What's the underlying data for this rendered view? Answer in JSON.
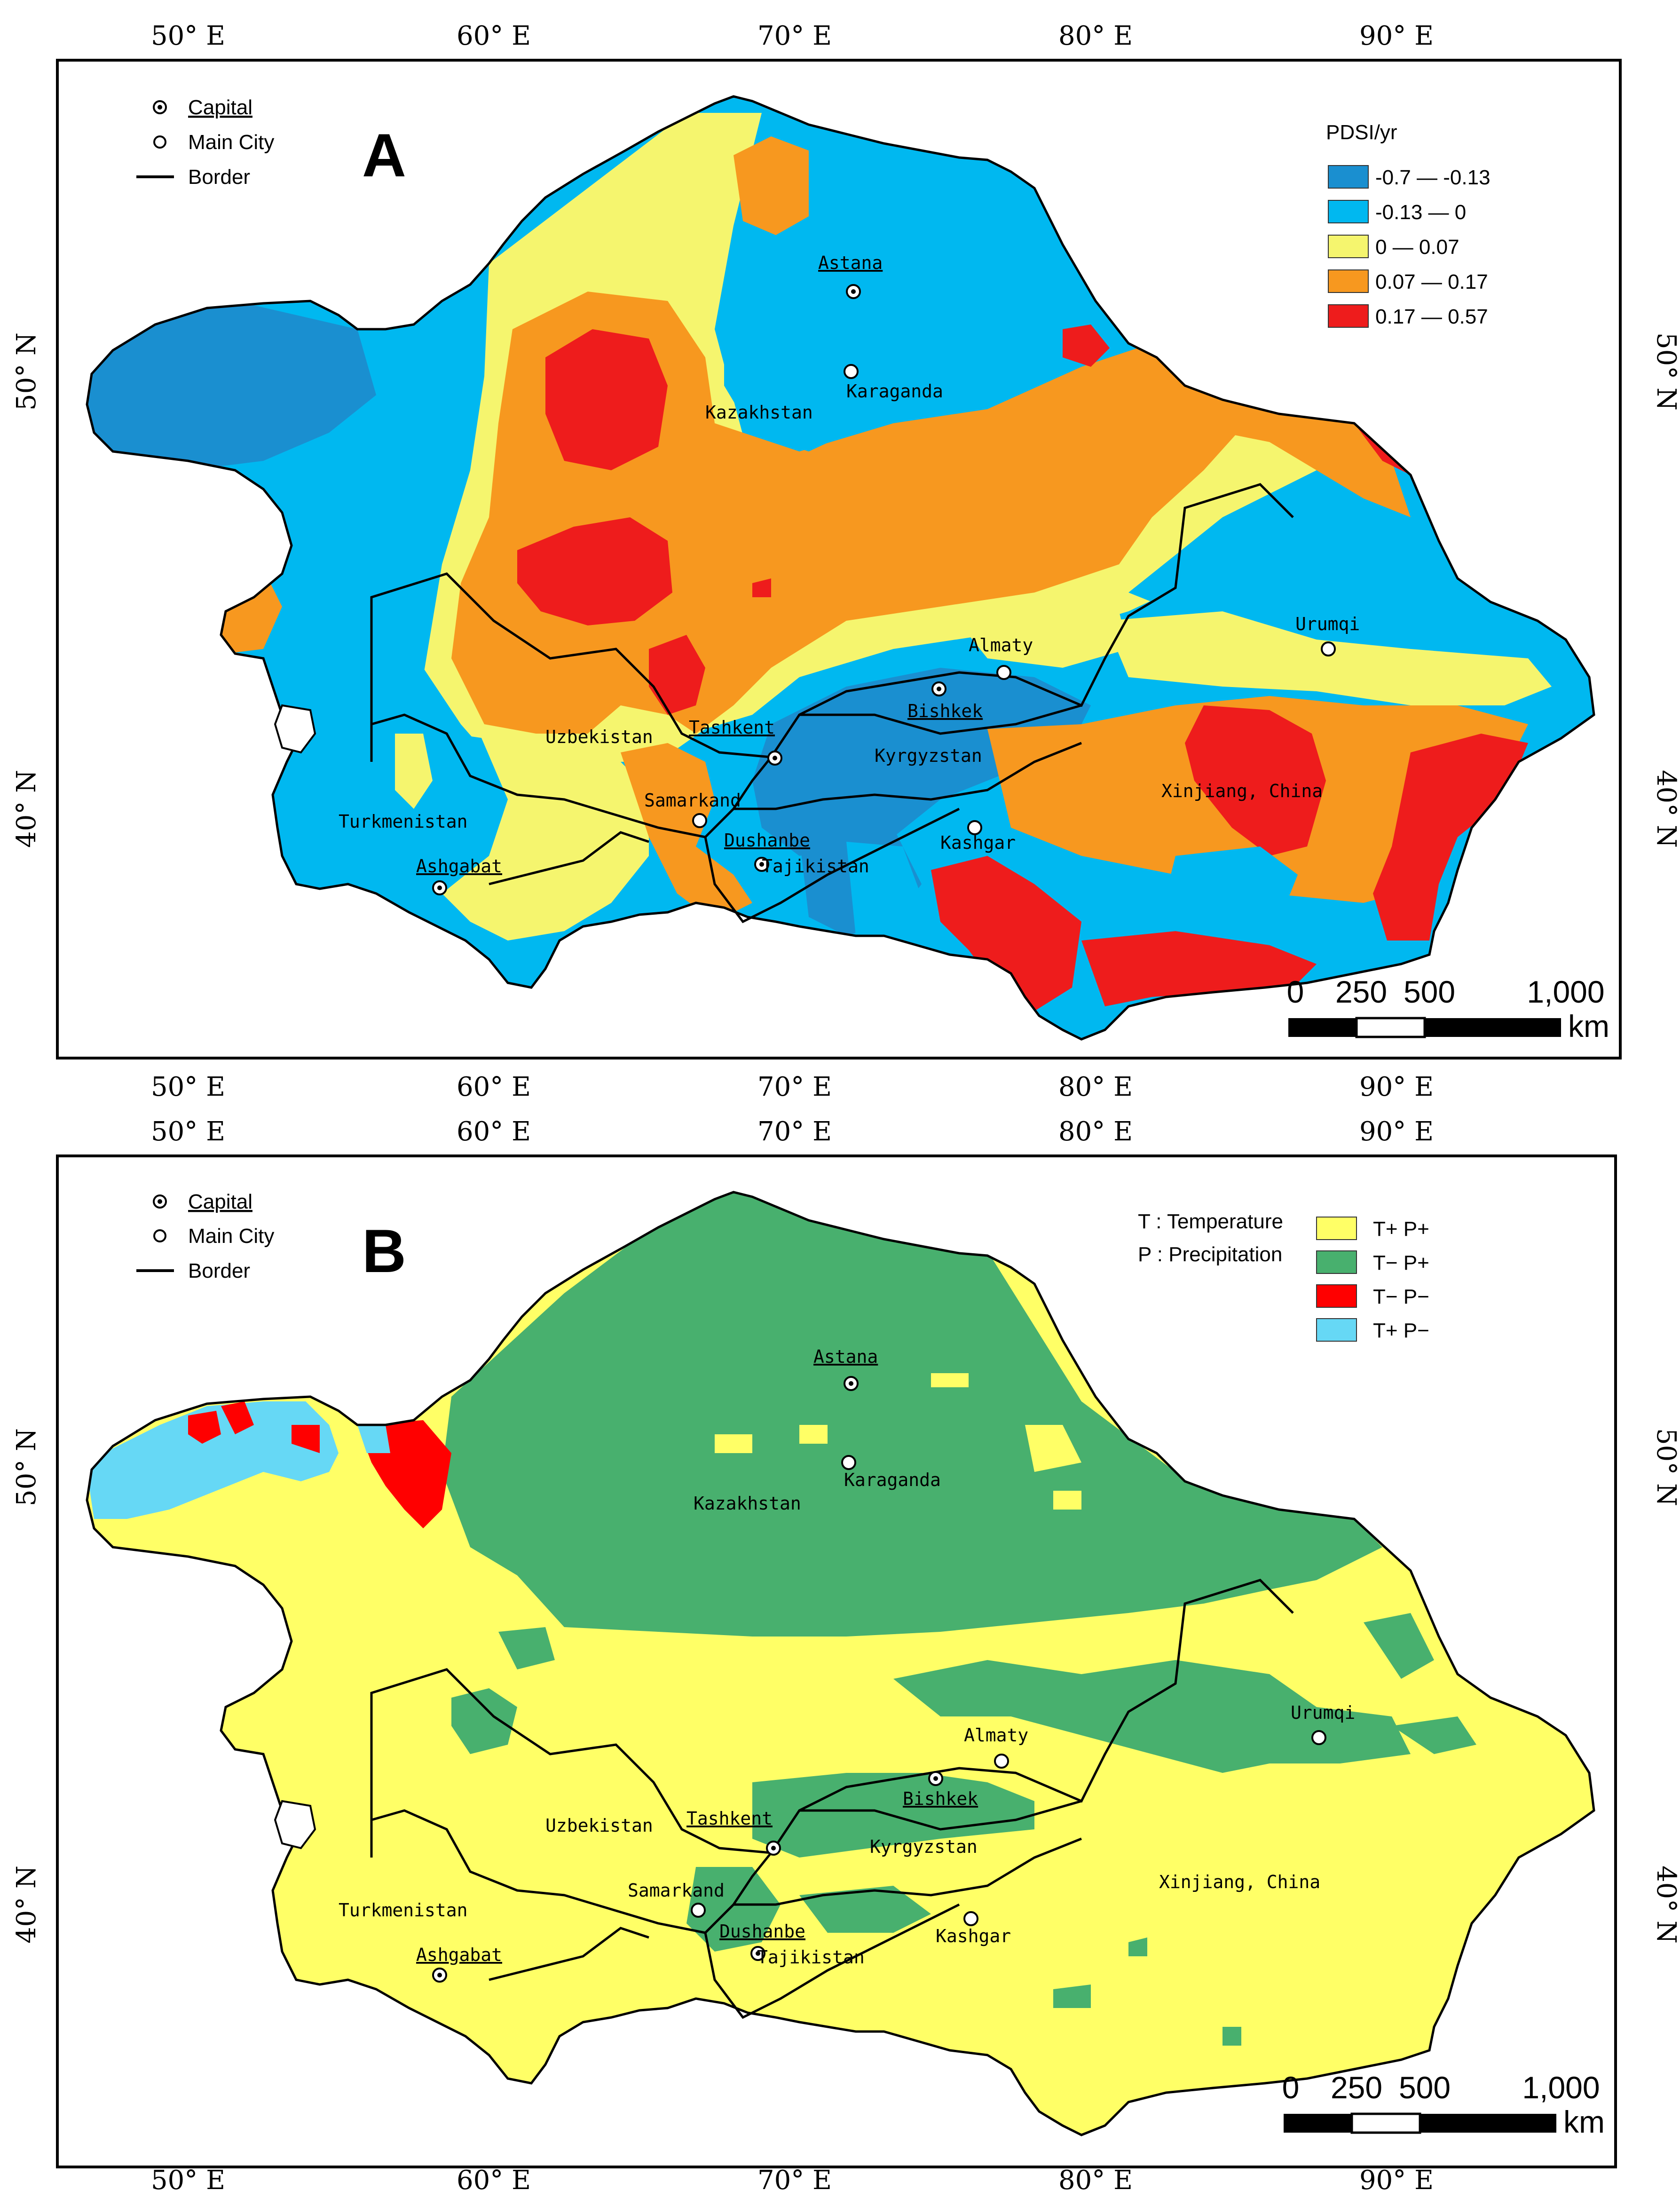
{
  "panel_a": {
    "label": "A",
    "lon_ticks": [
      "50° E",
      "60° E",
      "70° E",
      "80° E",
      "90° E"
    ],
    "lat_ticks": [
      "50° N",
      "40° N"
    ],
    "symbol_legend": {
      "capital": "Capital",
      "main_city": "Main City",
      "border": "Border"
    },
    "legend_title": "PDSI/yr",
    "classes": [
      {
        "label": "-0.7 — -0.13",
        "color": "#1a8fd0"
      },
      {
        "label": "-0.13 — 0",
        "color": "#00b8f0"
      },
      {
        "label": "0 — 0.07",
        "color": "#f5f56e"
      },
      {
        "label": "0.07 — 0.17",
        "color": "#f7981f"
      },
      {
        "label": "0.17 — 0.57",
        "color": "#ee1c1c"
      }
    ],
    "scale": {
      "zero": "0",
      "mid1": "250",
      "mid2": "500",
      "max": "1,000",
      "unit": "km"
    }
  },
  "panel_b": {
    "label": "B",
    "lon_ticks": [
      "50° E",
      "60° E",
      "70° E",
      "80° E",
      "90° E"
    ],
    "lat_ticks": [
      "50° N",
      "40° N"
    ],
    "symbol_legend": {
      "capital": "Capital",
      "main_city": "Main City",
      "border": "Border"
    },
    "t_note": "T : Temperature",
    "p_note": "P : Precipitation",
    "classes": [
      {
        "label": "T+ P+",
        "color": "#ffff66"
      },
      {
        "label": "T− P+",
        "color": "#48b06e"
      },
      {
        "label": "T− P−",
        "color": "#ff0000"
      },
      {
        "label": "T+ P−",
        "color": "#66d8f5"
      }
    ],
    "scale": {
      "zero": "0",
      "mid1": "250",
      "mid2": "500",
      "max": "1,000",
      "unit": "km"
    }
  },
  "places": {
    "astana": "Astana",
    "karaganda": "Karaganda",
    "kazakhstan": "Kazakhstan",
    "almaty": "Almaty",
    "bishkek": "Bishkek",
    "tashkent": "Tashkent",
    "uzbekistan": "Uzbekistan",
    "kyrgyzstan": "Kyrgyzstan",
    "turkmenistan": "Turkmenistan",
    "samarkand": "Samarkand",
    "dushanbe": "Dushanbe",
    "tajikistan": "Tajikistan",
    "ashgabat": "Ashgabat",
    "kashgar": "Kashgar",
    "urumqi": "Urumqi",
    "xinjiang": "Xinjiang, China"
  }
}
